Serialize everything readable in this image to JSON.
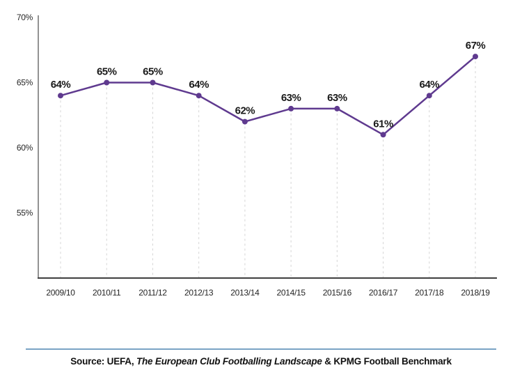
{
  "chart_data": {
    "type": "line",
    "title": "",
    "xlabel": "",
    "ylabel": "",
    "categories": [
      "2009/10",
      "2010/11",
      "2011/12",
      "2012/13",
      "2013/14",
      "2014/15",
      "2015/16",
      "2016/17",
      "2017/18",
      "2018/19"
    ],
    "values": [
      64,
      65,
      65,
      64,
      62,
      63,
      63,
      61,
      64,
      67
    ],
    "point_labels": [
      "64%",
      "65%",
      "65%",
      "64%",
      "62%",
      "63%",
      "63%",
      "61%",
      "64%",
      "67%"
    ],
    "ylim": [
      50,
      70
    ],
    "yticks": [
      55,
      60,
      65,
      70
    ],
    "ytick_labels": [
      "55%",
      "60%",
      "65%",
      "70%"
    ],
    "legend": null,
    "grid": "vertical-dashed-droplines",
    "line_color": "#5f3a8f",
    "marker_color": "#5f3a8f",
    "gridline_color": "#d4d4d4",
    "y_axis_color": "#6e6e6e",
    "x_axis_color": "#3f3f3f"
  },
  "footer": {
    "divider_color": "#7aa3c4",
    "source_prefix": "Source: UEFA, ",
    "source_italic": "The European Club Footballing Landscape",
    "source_suffix": " & KPMG Football Benchmark"
  }
}
